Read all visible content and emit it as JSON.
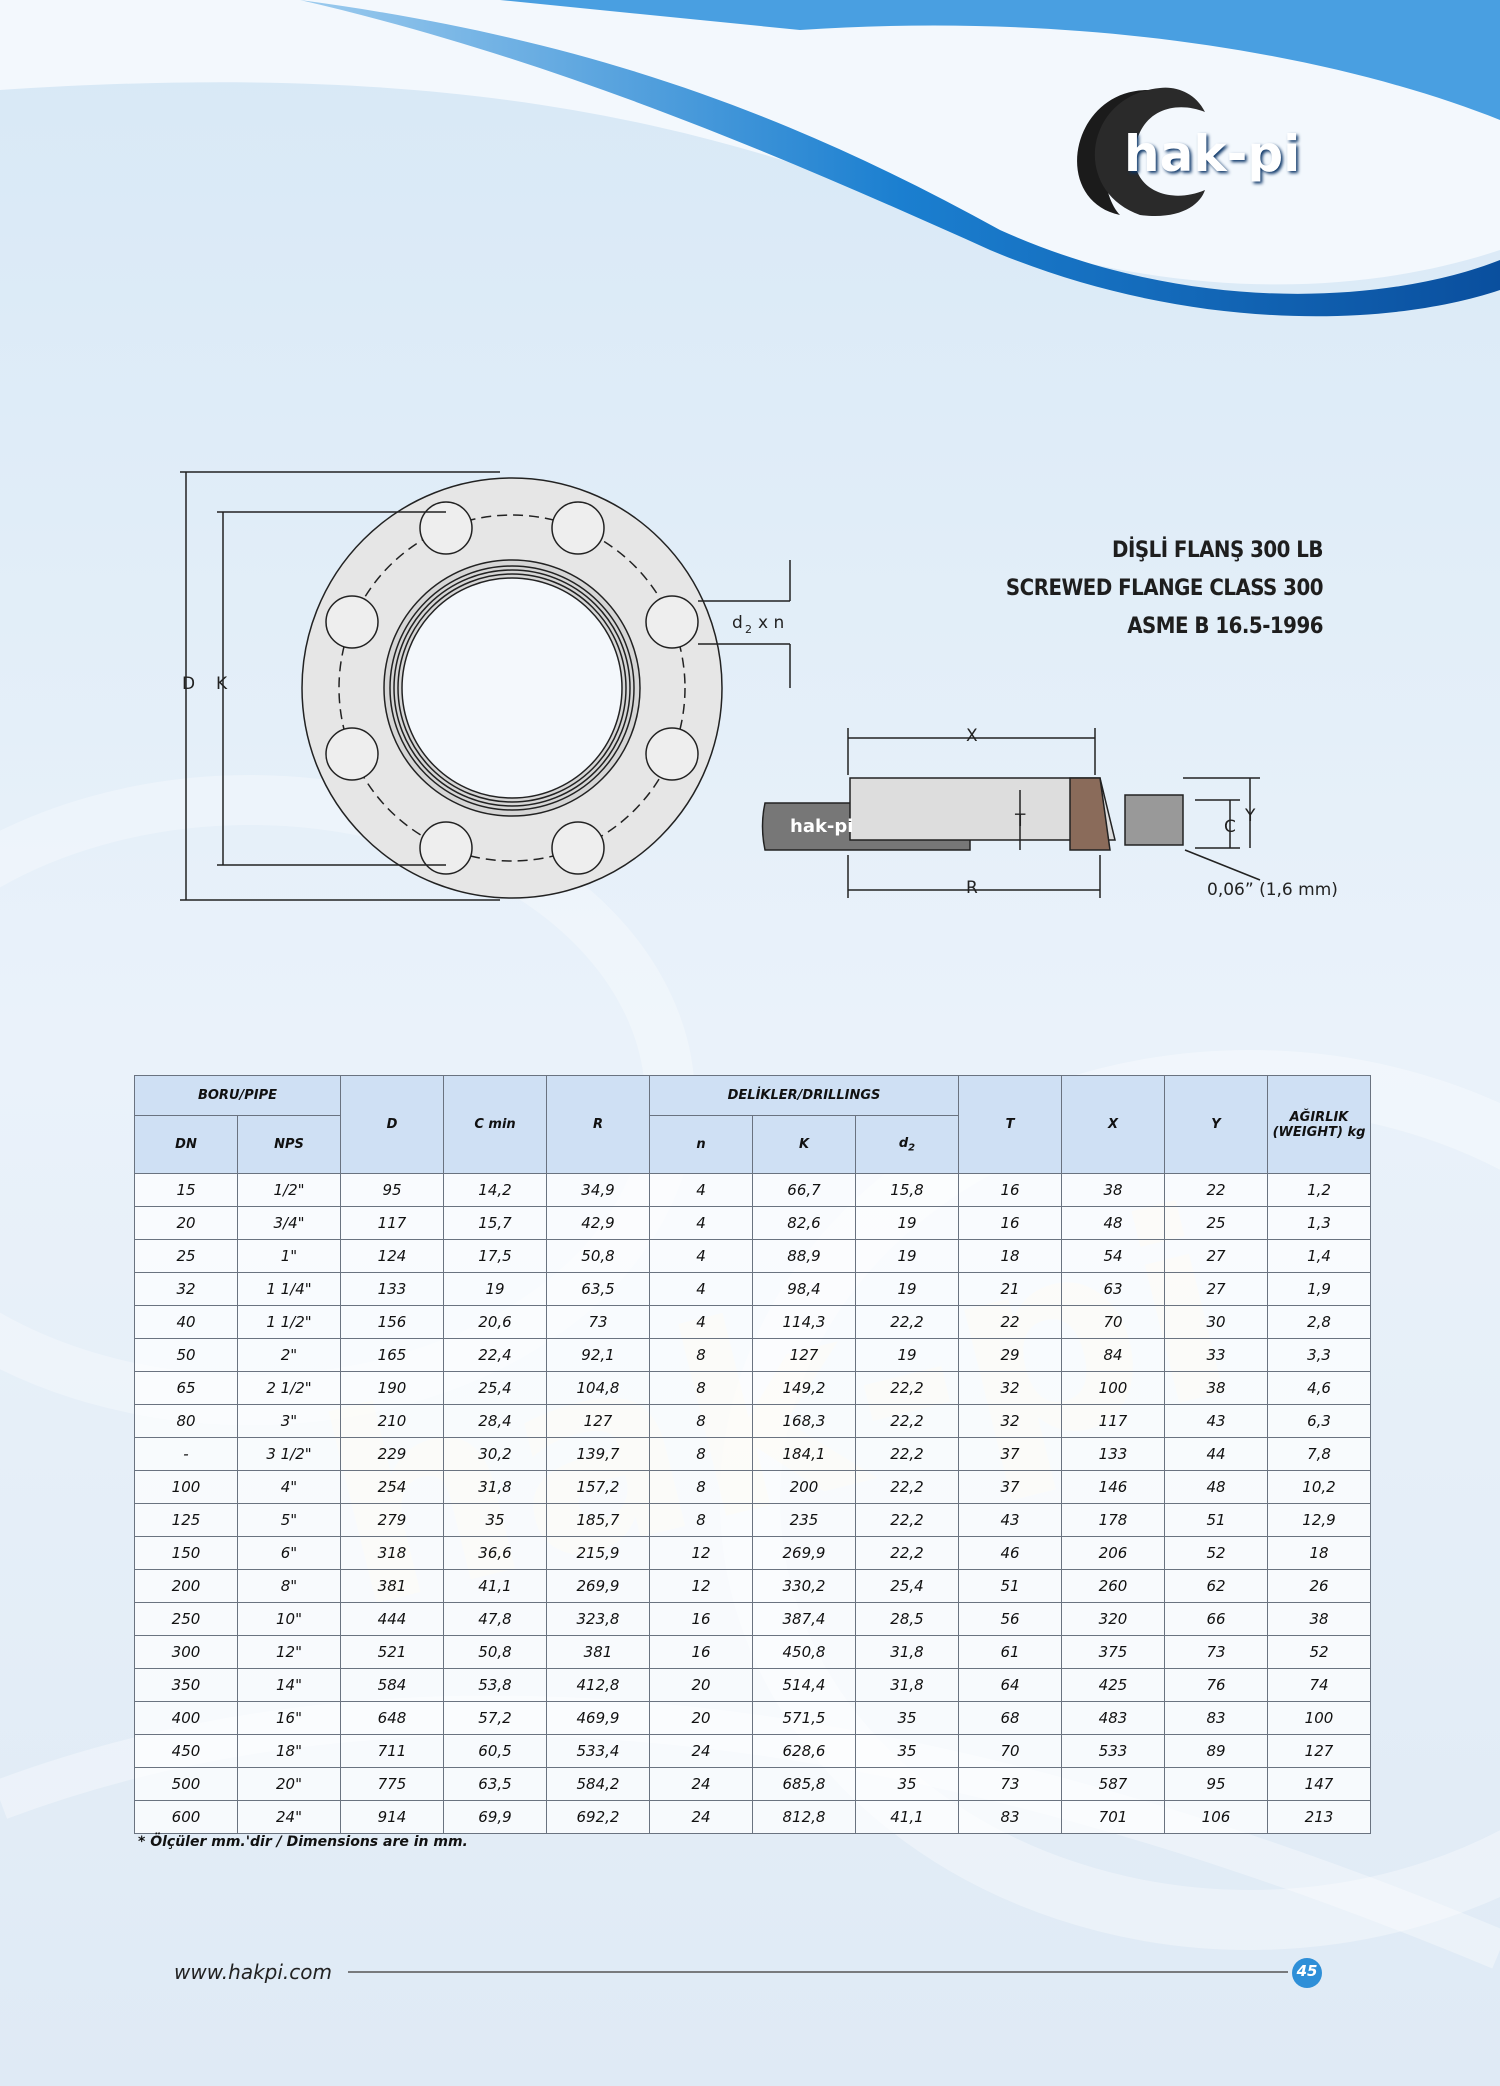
{
  "logo": {
    "text": "hak-pi"
  },
  "header": {
    "title_tr": "DİŞLİ FLANŞ 300 LB",
    "title_en": "SCREWED FLANGE CLASS 300",
    "standard": "ASME B 16.5-1996"
  },
  "drawing": {
    "front": {
      "d_label": "D",
      "k_label": "K",
      "hole_d": "d",
      "hole_sub": "2",
      "hole_n": "x n"
    },
    "side": {
      "x_label": "X",
      "t_label": "T",
      "r_label": "R",
      "c_label": "C",
      "y_label": "Y",
      "gap_label": "0,06” (1,6 mm)",
      "logo": "hak-pi"
    }
  },
  "watermark": "hak-pi",
  "table": {
    "group_pipe": "BORU/PIPE",
    "group_drillings": "DELİKLER/DRILLINGS",
    "columns": {
      "dn": "DN",
      "nps": "NPS",
      "d": "D",
      "cmin": "C min",
      "r": "R",
      "n": "n",
      "k": "K",
      "d2_base": "d",
      "d2_sub": "2",
      "t": "T",
      "x": "X",
      "y": "Y",
      "weight": "AĞIRLIK (WEIGHT) kg"
    },
    "rows": [
      [
        "15",
        "1/2\"",
        "95",
        "14,2",
        "34,9",
        "4",
        "66,7",
        "15,8",
        "16",
        "38",
        "22",
        "1,2"
      ],
      [
        "20",
        "3/4\"",
        "117",
        "15,7",
        "42,9",
        "4",
        "82,6",
        "19",
        "16",
        "48",
        "25",
        "1,3"
      ],
      [
        "25",
        "1\"",
        "124",
        "17,5",
        "50,8",
        "4",
        "88,9",
        "19",
        "18",
        "54",
        "27",
        "1,4"
      ],
      [
        "32",
        "1 1/4\"",
        "133",
        "19",
        "63,5",
        "4",
        "98,4",
        "19",
        "21",
        "63",
        "27",
        "1,9"
      ],
      [
        "40",
        "1 1/2\"",
        "156",
        "20,6",
        "73",
        "4",
        "114,3",
        "22,2",
        "22",
        "70",
        "30",
        "2,8"
      ],
      [
        "50",
        "2\"",
        "165",
        "22,4",
        "92,1",
        "8",
        "127",
        "19",
        "29",
        "84",
        "33",
        "3,3"
      ],
      [
        "65",
        "2 1/2\"",
        "190",
        "25,4",
        "104,8",
        "8",
        "149,2",
        "22,2",
        "32",
        "100",
        "38",
        "4,6"
      ],
      [
        "80",
        "3\"",
        "210",
        "28,4",
        "127",
        "8",
        "168,3",
        "22,2",
        "32",
        "117",
        "43",
        "6,3"
      ],
      [
        "-",
        "3 1/2\"",
        "229",
        "30,2",
        "139,7",
        "8",
        "184,1",
        "22,2",
        "37",
        "133",
        "44",
        "7,8"
      ],
      [
        "100",
        "4\"",
        "254",
        "31,8",
        "157,2",
        "8",
        "200",
        "22,2",
        "37",
        "146",
        "48",
        "10,2"
      ],
      [
        "125",
        "5\"",
        "279",
        "35",
        "185,7",
        "8",
        "235",
        "22,2",
        "43",
        "178",
        "51",
        "12,9"
      ],
      [
        "150",
        "6\"",
        "318",
        "36,6",
        "215,9",
        "12",
        "269,9",
        "22,2",
        "46",
        "206",
        "52",
        "18"
      ],
      [
        "200",
        "8\"",
        "381",
        "41,1",
        "269,9",
        "12",
        "330,2",
        "25,4",
        "51",
        "260",
        "62",
        "26"
      ],
      [
        "250",
        "10\"",
        "444",
        "47,8",
        "323,8",
        "16",
        "387,4",
        "28,5",
        "56",
        "320",
        "66",
        "38"
      ],
      [
        "300",
        "12\"",
        "521",
        "50,8",
        "381",
        "16",
        "450,8",
        "31,8",
        "61",
        "375",
        "73",
        "52"
      ],
      [
        "350",
        "14\"",
        "584",
        "53,8",
        "412,8",
        "20",
        "514,4",
        "31,8",
        "64",
        "425",
        "76",
        "74"
      ],
      [
        "400",
        "16\"",
        "648",
        "57,2",
        "469,9",
        "20",
        "571,5",
        "35",
        "68",
        "483",
        "83",
        "100"
      ],
      [
        "450",
        "18\"",
        "711",
        "60,5",
        "533,4",
        "24",
        "628,6",
        "35",
        "70",
        "533",
        "89",
        "127"
      ],
      [
        "500",
        "20\"",
        "775",
        "63,5",
        "584,2",
        "24",
        "685,8",
        "35",
        "73",
        "587",
        "95",
        "147"
      ],
      [
        "600",
        "24\"",
        "914",
        "69,9",
        "692,2",
        "24",
        "812,8",
        "41,1",
        "83",
        "701",
        "106",
        "213"
      ]
    ],
    "note": "* Ölçüler mm.'dir / Dimensions are in mm."
  },
  "footer": {
    "url": "www.hakpi.com",
    "page": "45"
  }
}
